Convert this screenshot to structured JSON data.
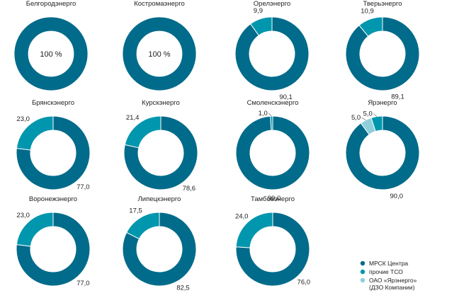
{
  "chart_data": {
    "type": "pie",
    "style": "donut",
    "colors": {
      "МРСК Центра": "#006b8a",
      "прочие ТСО": "#0096ae",
      "ОАО «Ярэнерго»": "#8fcfdc"
    },
    "legend": {
      "placement": "bottom-right",
      "entries": [
        {
          "label": "МРСК Центра",
          "color": "#006b8a"
        },
        {
          "label": "прочие ТСО",
          "color": "#0096ae"
        },
        {
          "label": "ОАО «Ярэнерго»",
          "sub": "(ДЗО Компании)",
          "color": "#8fcfdc"
        }
      ]
    },
    "charts": [
      {
        "title": "Белгородэнерго",
        "center_label": "100 %",
        "slices": [
          {
            "series": "МРСК Центра",
            "value": 100
          }
        ]
      },
      {
        "title": "Костромаэнерго",
        "center_label": "100 %",
        "slices": [
          {
            "series": "МРСК Центра",
            "value": 100
          }
        ]
      },
      {
        "title": "Орелэнерго",
        "slices": [
          {
            "series": "МРСК Центра",
            "value": 90.1,
            "label": "90,1"
          },
          {
            "series": "прочие ТСО",
            "value": 9.9,
            "label": "9,9"
          }
        ]
      },
      {
        "title": "Тверьэнерго",
        "slices": [
          {
            "series": "МРСК Центра",
            "value": 89.1,
            "label": "89,1"
          },
          {
            "series": "прочие ТСО",
            "value": 10.9,
            "label": "10,9"
          }
        ]
      },
      {
        "title": "Брянскэнерго",
        "slices": [
          {
            "series": "МРСК Центра",
            "value": 77.0,
            "label": "77,0"
          },
          {
            "series": "прочие ТСО",
            "value": 23.0,
            "label": "23,0"
          }
        ]
      },
      {
        "title": "Курскэнерго",
        "slices": [
          {
            "series": "МРСК Центра",
            "value": 78.6,
            "label": "78,6"
          },
          {
            "series": "прочие ТСО",
            "value": 21.4,
            "label": "21,4"
          }
        ]
      },
      {
        "title": "Смоленскэнерго",
        "slices": [
          {
            "series": "МРСК Центра",
            "value": 99.0,
            "label": "99,0"
          },
          {
            "series": "прочие ТСО",
            "value": 1.0,
            "label": "1,0"
          }
        ]
      },
      {
        "title": "Ярэнерго",
        "slices": [
          {
            "series": "МРСК Центра",
            "value": 90.0,
            "label": "90,0"
          },
          {
            "series": "прочие ТСО",
            "value": 5.0,
            "label": "5,0"
          },
          {
            "series": "ОАО «Ярэнерго»",
            "value": 5.0,
            "label": "5,0"
          }
        ]
      },
      {
        "title": "Воронежэнерго",
        "slices": [
          {
            "series": "МРСК Центра",
            "value": 77.0,
            "label": "77,0"
          },
          {
            "series": "прочие ТСО",
            "value": 23.0,
            "label": "23,0"
          }
        ]
      },
      {
        "title": "Липецкэнерго",
        "slices": [
          {
            "series": "МРСК Центра",
            "value": 82.5,
            "label": "82,5"
          },
          {
            "series": "прочие ТСО",
            "value": 17.5,
            "label": "17,5"
          }
        ]
      },
      {
        "title": "Тамбовэнерго",
        "slices": [
          {
            "series": "МРСК Центра",
            "value": 76.0,
            "label": "76,0"
          },
          {
            "series": "прочие ТСО",
            "value": 24.0,
            "label": "24,0"
          }
        ]
      }
    ]
  }
}
